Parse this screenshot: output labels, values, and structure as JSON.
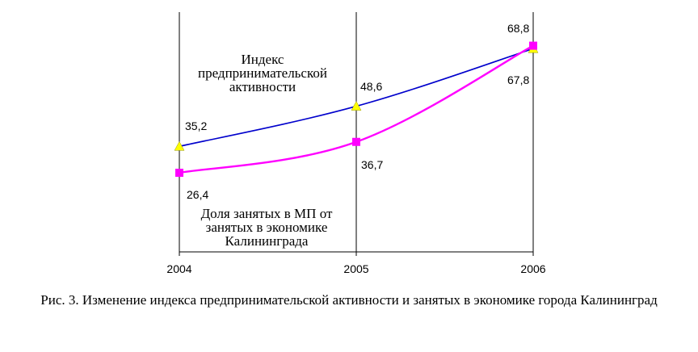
{
  "chart_data": {
    "type": "line",
    "x": [
      "2004",
      "2005",
      "2006"
    ],
    "series": [
      {
        "key": "index",
        "color": "#0000cc",
        "marker": "triangle",
        "marker_color": "#ffff00",
        "values": [
          35.2,
          48.6,
          67.8
        ],
        "labels": [
          "35,2",
          "48,6",
          "67,8"
        ]
      },
      {
        "key": "share",
        "color": "#ff00ff",
        "marker": "square",
        "marker_color": "#ff00ff",
        "values": [
          26.4,
          36.7,
          68.8
        ],
        "labels": [
          "26,4",
          "36,7",
          "68,8"
        ]
      }
    ],
    "annotations": {
      "index": [
        "Индекс",
        "предпринимательской",
        "активности"
      ],
      "share": [
        "Доля занятых в МП от",
        "занятых в экономике",
        "Калининграда"
      ]
    },
    "grid": "vertical",
    "ylabel": "",
    "xlabel": ""
  },
  "caption": "Рис. 3. Изменение индекса предпринимательской активности и занятых в экономике города Калининград"
}
